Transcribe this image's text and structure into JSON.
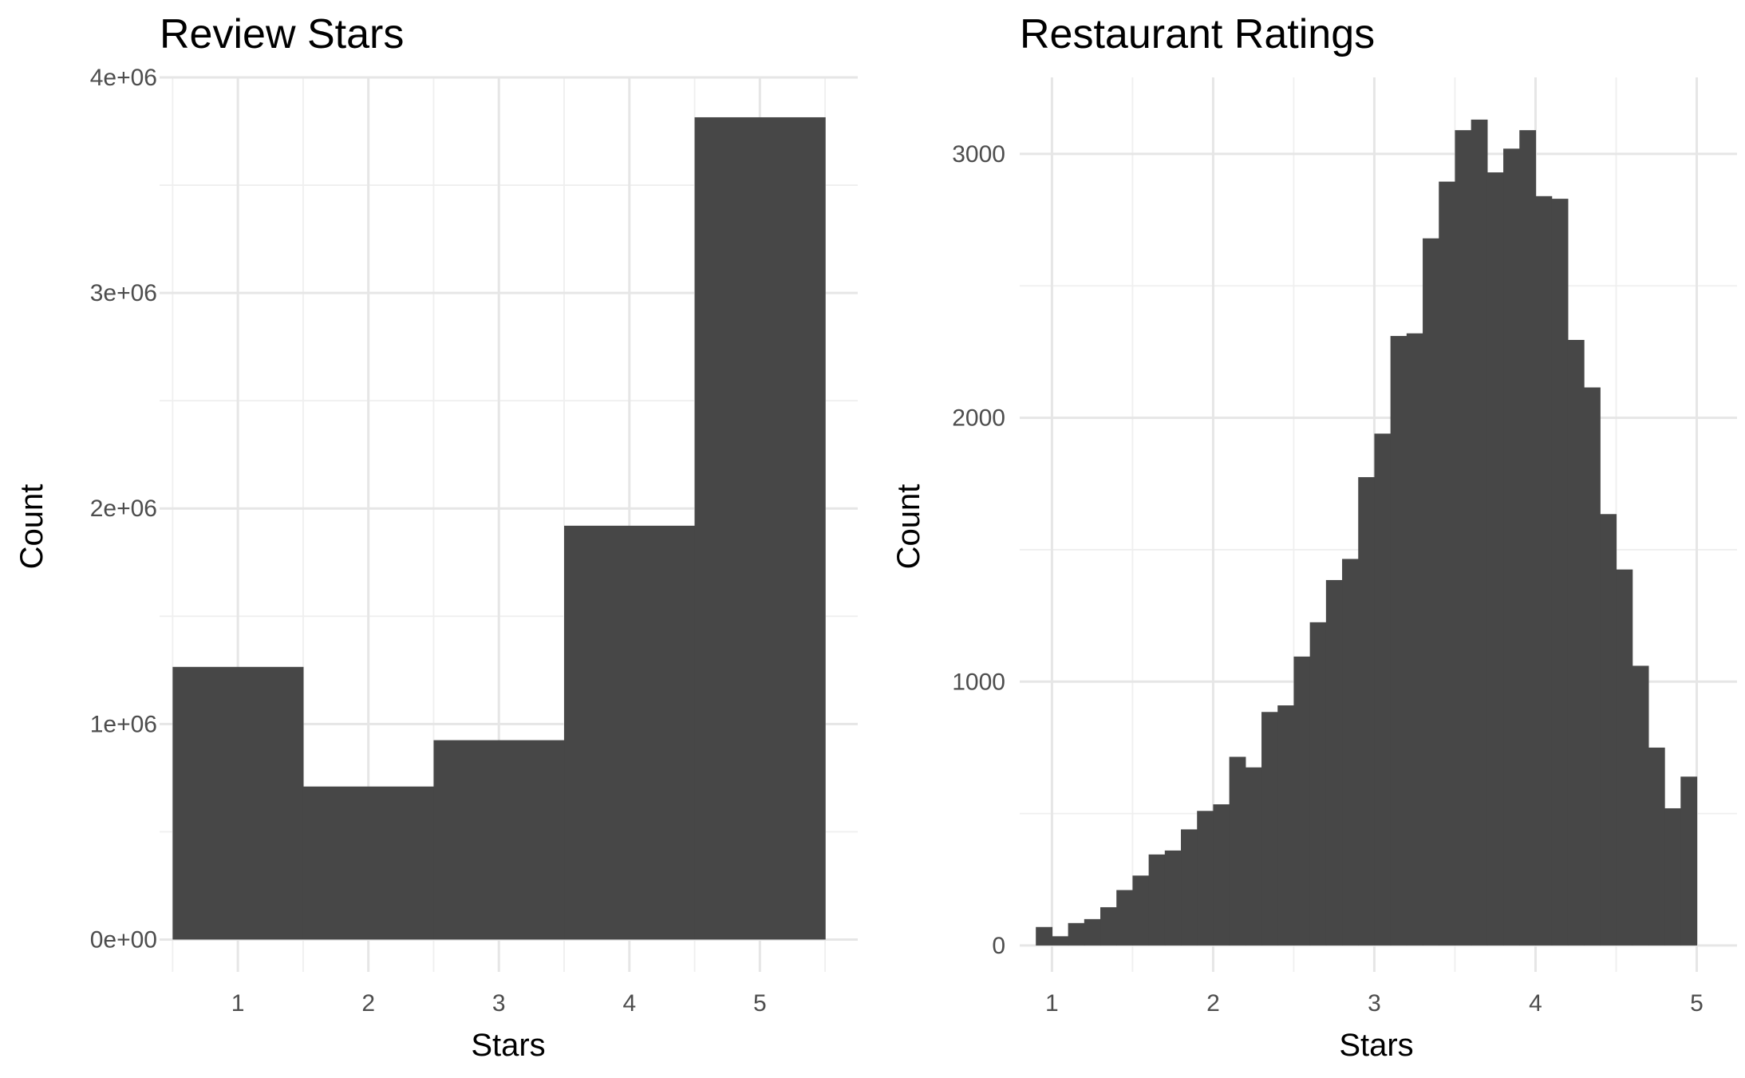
{
  "chart_data": [
    {
      "type": "bar",
      "title": "Review Stars",
      "xlabel": "Stars",
      "ylabel": "Count",
      "xlim": [
        0.4,
        5.75
      ],
      "ylim": [
        -150000,
        4000000
      ],
      "x_ticks": [
        1,
        2,
        3,
        4,
        5
      ],
      "x_tick_labels": [
        "1",
        "2",
        "3",
        "4",
        "5"
      ],
      "y_ticks": [
        0,
        1000000,
        2000000,
        3000000,
        4000000
      ],
      "y_tick_labels": [
        "0e+00",
        "1e+06",
        "2e+06",
        "3e+06",
        "4e+06"
      ],
      "x_minor_ticks": [
        0.5,
        1.5,
        2.5,
        3.5,
        4.5,
        5.5
      ],
      "y_minor_ticks": [
        500000,
        1500000,
        2500000,
        3500000
      ],
      "bin_width": 1,
      "x": [
        1,
        2,
        3,
        4,
        5
      ],
      "values": [
        1265000,
        710000,
        925000,
        1920000,
        3815000
      ],
      "bar_color": "#474747",
      "grid": true
    },
    {
      "type": "bar",
      "title": "Restaurant Ratings",
      "xlabel": "Stars",
      "ylabel": "Count",
      "xlim": [
        0.8,
        5.25
      ],
      "ylim": [
        -100,
        3290
      ],
      "x_ticks": [
        1,
        2,
        3,
        4,
        5
      ],
      "x_tick_labels": [
        "1",
        "2",
        "3",
        "4",
        "5"
      ],
      "y_ticks": [
        0,
        1000,
        2000,
        3000
      ],
      "y_tick_labels": [
        "0",
        "1000",
        "2000",
        "3000"
      ],
      "x_minor_ticks": [
        1.5,
        2.5,
        3.5,
        4.5
      ],
      "y_minor_ticks": [
        500,
        1500,
        2500
      ],
      "bin_width": 0.1,
      "x": [
        0.95,
        1.05,
        1.15,
        1.25,
        1.35,
        1.45,
        1.55,
        1.65,
        1.75,
        1.85,
        1.95,
        2.05,
        2.15,
        2.25,
        2.35,
        2.45,
        2.55,
        2.65,
        2.75,
        2.85,
        2.95,
        3.05,
        3.15,
        3.25,
        3.35,
        3.45,
        3.55,
        3.65,
        3.75,
        3.85,
        3.95,
        4.05,
        4.15,
        4.25,
        4.35,
        4.45,
        4.55,
        4.65,
        4.75,
        4.85,
        4.95,
        5.05
      ],
      "values": [
        70,
        35,
        85,
        100,
        145,
        210,
        265,
        345,
        360,
        440,
        510,
        535,
        715,
        675,
        885,
        910,
        1095,
        1225,
        1385,
        1465,
        1775,
        1940,
        2310,
        2320,
        2680,
        2895,
        3090,
        3130,
        2930,
        3020,
        3090,
        2840,
        2830,
        2295,
        2115,
        1635,
        1425,
        1060,
        750,
        520,
        640,
        0
      ],
      "bar_color": "#474747",
      "grid": true
    }
  ]
}
